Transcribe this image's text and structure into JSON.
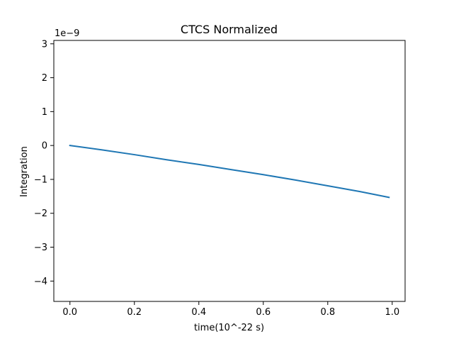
{
  "chart_data": {
    "type": "line",
    "title": "CTCS Normalized",
    "xlabel": "time(10^-22 s)",
    "ylabel": "Integration",
    "y_offset_label": "1e−9",
    "xlim": [
      -0.05,
      1.04
    ],
    "ylim": [
      -4.6,
      3.1
    ],
    "x_ticks": [
      0.0,
      0.2,
      0.4,
      0.6,
      0.8,
      1.0
    ],
    "x_tick_labels": [
      "0.0",
      "0.2",
      "0.4",
      "0.6",
      "0.8",
      "1.0"
    ],
    "y_ticks": [
      -4,
      -3,
      -2,
      -1,
      0,
      1,
      2,
      3
    ],
    "y_tick_labels": [
      "−4",
      "−3",
      "−2",
      "−1",
      "0",
      "1",
      "2",
      "3"
    ],
    "grid": false,
    "series": [
      {
        "color": "#1f77b4",
        "x": [
          0.0,
          0.1,
          0.2,
          0.3,
          0.4,
          0.5,
          0.6,
          0.7,
          0.8,
          0.9,
          0.99
        ],
        "y": [
          0.0,
          -0.13,
          -0.27,
          -0.42,
          -0.56,
          -0.71,
          -0.86,
          -1.02,
          -1.19,
          -1.36,
          -1.53
        ]
      }
    ]
  }
}
